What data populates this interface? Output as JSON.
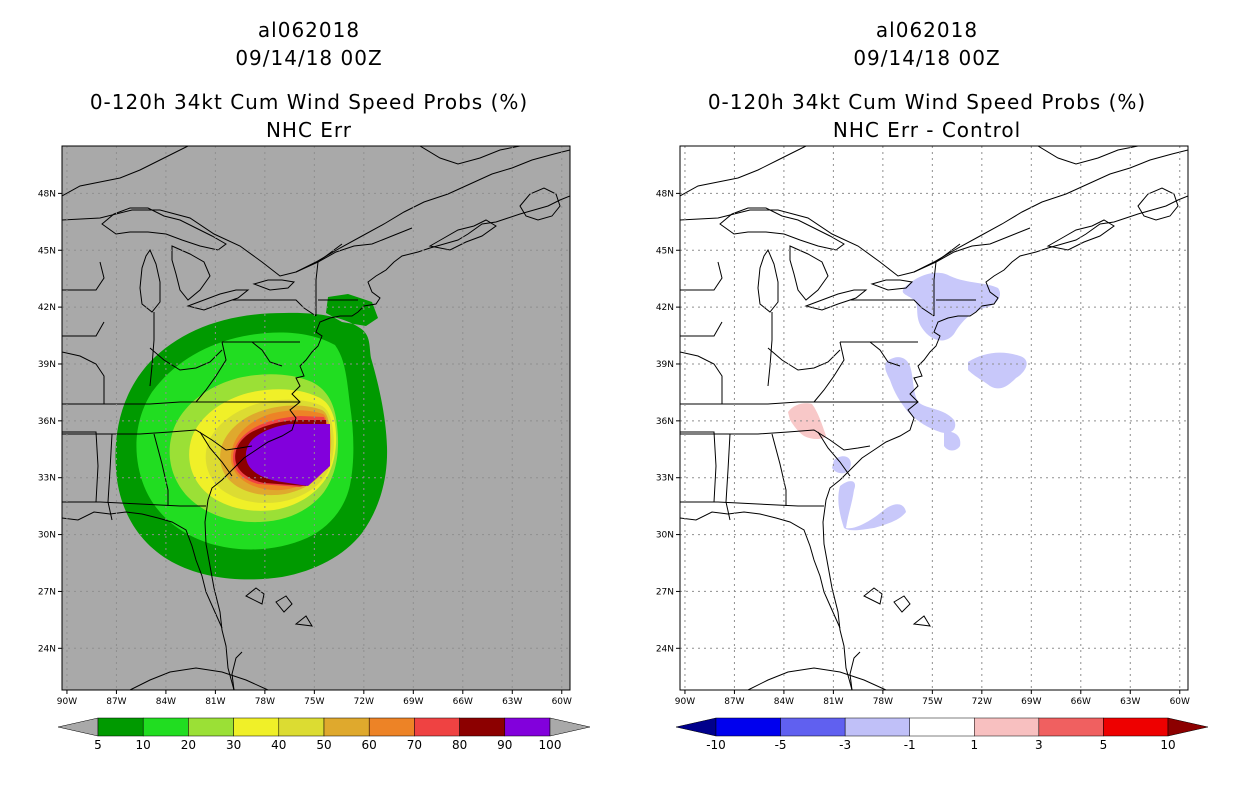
{
  "left_panel": {
    "storm_id": "al062018",
    "datetime": "09/14/18 00Z",
    "product": "0-120h 34kt Cum Wind Speed Probs (%)",
    "subtitle": "NHC Err",
    "colorbar": {
      "ticks": [
        "5",
        "10",
        "20",
        "30",
        "40",
        "50",
        "60",
        "70",
        "80",
        "90",
        "100"
      ],
      "colors": [
        "#a9a9a9",
        "#009a00",
        "#21dd21",
        "#9be036",
        "#f0f028",
        "#dcdc32",
        "#dfa92d",
        "#ed8326",
        "#ef4242",
        "#8c0000",
        "#8200dc",
        "#a9a9a9"
      ]
    }
  },
  "right_panel": {
    "storm_id": "al062018",
    "datetime": "09/14/18 00Z",
    "product": "0-120h 34kt Cum Wind Speed Probs (%)",
    "subtitle": "NHC Err - Control",
    "colorbar": {
      "ticks": [
        "-10",
        "-5",
        "-3",
        "-1",
        "1",
        "3",
        "5",
        "10"
      ],
      "colors": [
        "#00008c",
        "#0000ee",
        "#6060f0",
        "#c0c0f8",
        "#ffffff",
        "#f8c0c0",
        "#f06060",
        "#ee0000",
        "#8c0000"
      ]
    }
  },
  "axes": {
    "lat_labels": [
      "48N",
      "45N",
      "42N",
      "39N",
      "36N",
      "33N",
      "30N",
      "27N",
      "24N"
    ],
    "lon_labels": [
      "90W",
      "87W",
      "84W",
      "81W",
      "78W",
      "75W",
      "72W",
      "69W",
      "66W",
      "63W",
      "60W"
    ],
    "lat_values": [
      48,
      45,
      42,
      39,
      36,
      33,
      30,
      27,
      24
    ],
    "lon_values": [
      -90,
      -87,
      -84,
      -81,
      -78,
      -75,
      -72,
      -69,
      -66,
      -63,
      -60
    ],
    "extent": {
      "lon_min": -90.3,
      "lon_max": -59.5,
      "lat_min": 21.8,
      "lat_max": 50.5
    }
  }
}
